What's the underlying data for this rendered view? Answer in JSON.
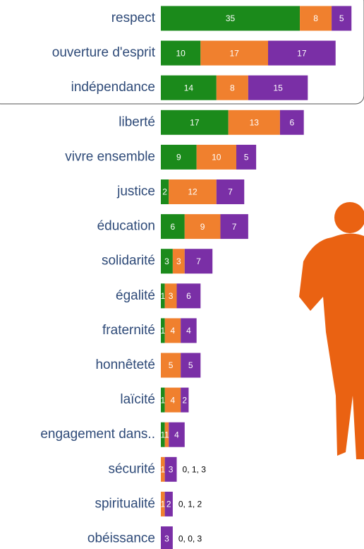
{
  "chart_data": {
    "type": "stacked-bar-horizontal",
    "categories": [
      "respect",
      "ouverture d'esprit",
      "indépendance",
      "liberté",
      "vivre ensemble",
      "justice",
      "éducation",
      "solidarité",
      "égalité",
      "fraternité",
      "honnêteté",
      "laïcité",
      "engagement dans..",
      "sécurité",
      "spiritualité",
      "obéissance"
    ],
    "series": [
      {
        "color": "#1b8a1b",
        "values": [
          35,
          10,
          14,
          17,
          9,
          2,
          6,
          3,
          1,
          1,
          0,
          1,
          1,
          0,
          0,
          0
        ]
      },
      {
        "color": "#f0802e",
        "values": [
          8,
          17,
          8,
          13,
          10,
          12,
          9,
          3,
          3,
          4,
          5,
          4,
          1,
          1,
          1,
          0
        ]
      },
      {
        "color": "#7a2fa6",
        "values": [
          5,
          17,
          15,
          6,
          5,
          7,
          7,
          7,
          6,
          4,
          5,
          2,
          4,
          3,
          2,
          3
        ]
      }
    ],
    "row_notes": [
      null,
      null,
      null,
      null,
      null,
      null,
      null,
      null,
      null,
      null,
      null,
      null,
      null,
      "0, 1, 3",
      "0, 1, 2",
      "0, 0, 3"
    ]
  }
}
